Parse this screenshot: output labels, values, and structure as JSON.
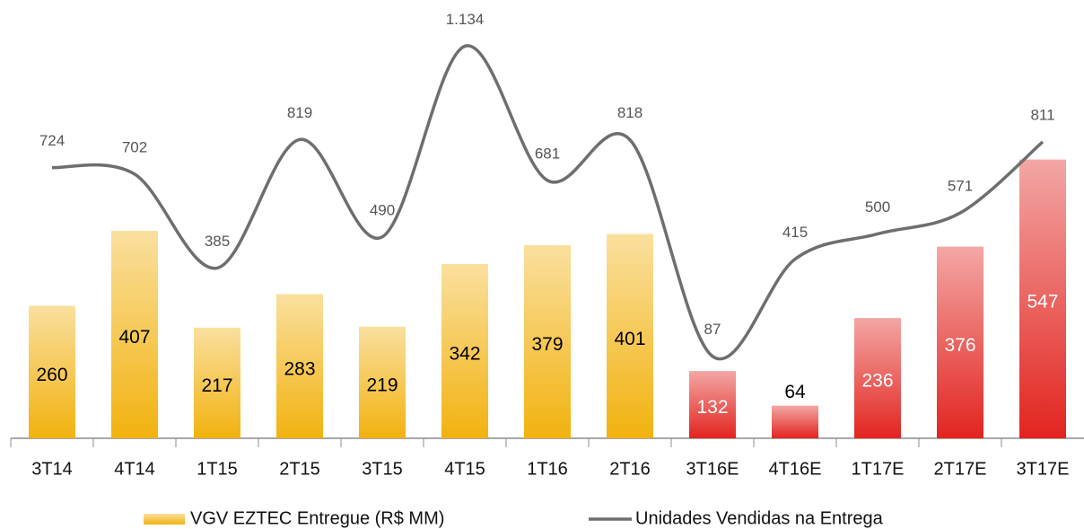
{
  "chart_data": {
    "type": "bar-line",
    "categories": [
      "3T14",
      "4T14",
      "1T15",
      "2T15",
      "3T15",
      "4T15",
      "1T16",
      "2T16",
      "3T16E",
      "4T16E",
      "1T17E",
      "2T17E",
      "3T17E"
    ],
    "series": [
      {
        "name": "VGV EZTEC Entregue (R$ MM)",
        "type": "bar",
        "color": "#f2b20f",
        "colors": [
          "#f2b20f",
          "#f2b20f",
          "#f2b20f",
          "#f2b20f",
          "#f2b20f",
          "#f2b20f",
          "#f2b20f",
          "#f2b20f",
          "#e2241f",
          "#e2241f",
          "#e2241f",
          "#e2241f",
          "#e2241f"
        ],
        "values": [
          260,
          407,
          217,
          283,
          219,
          342,
          379,
          401,
          132,
          64,
          236,
          376,
          547
        ]
      },
      {
        "name": "Unidades Vendidas na Entrega",
        "type": "line",
        "axis": "y2",
        "color": "#6e6e6e",
        "values": [
          724,
          702,
          385,
          819,
          490,
          1134,
          681,
          818,
          87,
          415,
          500,
          571,
          811
        ],
        "value_labels": [
          "724",
          "702",
          "385",
          "819",
          "490",
          "1.134",
          "681",
          "818",
          "87",
          "415",
          "500",
          "571",
          "811"
        ]
      }
    ],
    "ylim": [
      0,
      860
    ],
    "y2lim": [
      -190,
      1290
    ],
    "smooth": true
  }
}
